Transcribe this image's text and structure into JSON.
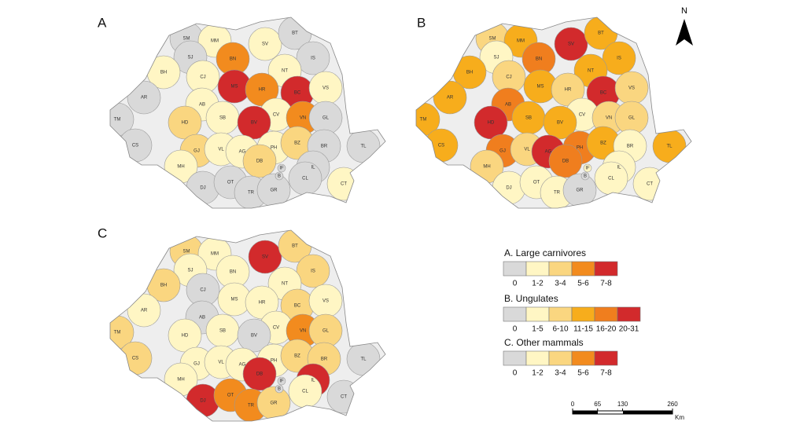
{
  "north": "N",
  "counties": [
    "SM",
    "MM",
    "SV",
    "BT",
    "SJ",
    "BN",
    "IS",
    "BH",
    "CJ",
    "NT",
    "MS",
    "HR",
    "BC",
    "VS",
    "AR",
    "AB",
    "SB",
    "CV",
    "VN",
    "GL",
    "HD",
    "BV",
    "TM",
    "CS",
    "GJ",
    "VL",
    "AG",
    "PH",
    "BZ",
    "BR",
    "TL",
    "DB",
    "MH",
    "IF",
    "B",
    "IL",
    "DJ",
    "OT",
    "TR",
    "GR",
    "CL",
    "CT"
  ],
  "maps": [
    {
      "label": "A",
      "legend": 0,
      "classes": [
        "0",
        "1-2",
        "1-2",
        "0",
        "0",
        "5-6",
        "0",
        "1-2",
        "1-2",
        "1-2",
        "7-8",
        "5-6",
        "7-8",
        "1-2",
        "0",
        "1-2",
        "1-2",
        "1-2",
        "5-6",
        "0",
        "3-4",
        "7-8",
        "0",
        "0",
        "3-4",
        "1-2",
        "1-2",
        "1-2",
        "3-4",
        "0",
        "0",
        "3-4",
        "1-2",
        "0",
        "0",
        "0",
        "0",
        "0",
        "0",
        "0",
        "0",
        "1-2"
      ]
    },
    {
      "label": "B",
      "legend": 1,
      "classes": [
        "6-10",
        "11-15",
        "20-31",
        "11-15",
        "1-5",
        "16-20",
        "11-15",
        "11-15",
        "6-10",
        "11-15",
        "11-15",
        "6-10",
        "20-31",
        "6-10",
        "11-15",
        "16-20",
        "11-15",
        "1-5",
        "6-10",
        "6-10",
        "20-31",
        "11-15",
        "11-15",
        "11-15",
        "16-20",
        "6-10",
        "20-31",
        "16-20",
        "11-15",
        "1-5",
        "11-15",
        "16-20",
        "6-10",
        "1-5",
        "0",
        "1-5",
        "1-5",
        "1-5",
        "1-5",
        "0",
        "1-5",
        "1-5"
      ]
    },
    {
      "label": "C",
      "legend": 2,
      "classes": [
        "3-4",
        "1-2",
        "7-8",
        "3-4",
        "1-2",
        "1-2",
        "3-4",
        "3-4",
        "0",
        "1-2",
        "1-2",
        "1-2",
        "3-4",
        "1-2",
        "1-2",
        "0",
        "1-2",
        "1-2",
        "5-6",
        "3-4",
        "1-2",
        "0",
        "3-4",
        "3-4",
        "1-2",
        "1-2",
        "1-2",
        "1-2",
        "3-4",
        "3-4",
        "0",
        "7-8",
        "1-2",
        "0",
        "0",
        "7-8",
        "7-8",
        "5-6",
        "5-6",
        "3-4",
        "1-2",
        "0"
      ]
    }
  ],
  "legend": [
    {
      "title": "A. Large carnivores",
      "classes": [
        {
          "label": "0",
          "color": "#d9d9d9"
        },
        {
          "label": "1-2",
          "color": "#fff6c4"
        },
        {
          "label": "3-4",
          "color": "#fad680"
        },
        {
          "label": "5-6",
          "color": "#f28b1e"
        },
        {
          "label": "7-8",
          "color": "#d22a2c"
        }
      ]
    },
    {
      "title": "B. Ungulates",
      "classes": [
        {
          "label": "0",
          "color": "#d9d9d9"
        },
        {
          "label": "1-5",
          "color": "#fff6c4"
        },
        {
          "label": "6-10",
          "color": "#fad680"
        },
        {
          "label": "11-15",
          "color": "#f7ad1c"
        },
        {
          "label": "16-20",
          "color": "#f07e1e"
        },
        {
          "label": "20-31",
          "color": "#d22a2c"
        }
      ]
    },
    {
      "title": "C. Other mammals",
      "classes": [
        {
          "label": "0",
          "color": "#d9d9d9"
        },
        {
          "label": "1-2",
          "color": "#fff6c4"
        },
        {
          "label": "3-4",
          "color": "#fad680"
        },
        {
          "label": "5-6",
          "color": "#f28b1e"
        },
        {
          "label": "7-8",
          "color": "#d22a2c"
        }
      ]
    }
  ],
  "scale": {
    "ticks": [
      0,
      65,
      130,
      260
    ],
    "unit": "Km"
  }
}
